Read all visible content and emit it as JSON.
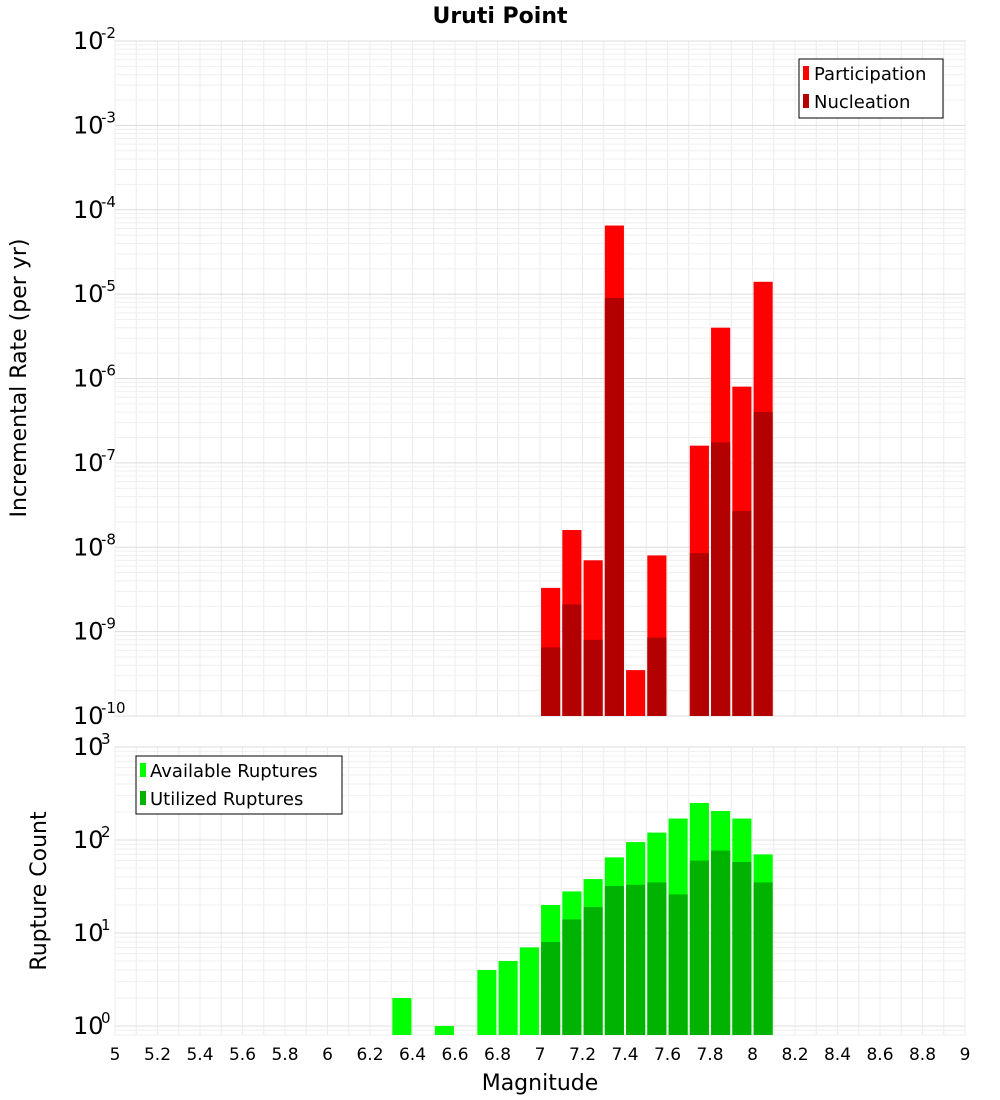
{
  "chart_data": [
    {
      "type": "bar",
      "title": "Uruti Point",
      "xlabel": "",
      "ylabel": "Incremental Rate (per yr)",
      "yscale": "log",
      "ylim": [
        1e-10,
        0.01
      ],
      "xlim": [
        5,
        9
      ],
      "yticks": [
        {
          "base": "10",
          "exp": "-10"
        },
        {
          "base": "10",
          "exp": "-9"
        },
        {
          "base": "10",
          "exp": "-8"
        },
        {
          "base": "10",
          "exp": "-7"
        },
        {
          "base": "10",
          "exp": "-6"
        },
        {
          "base": "10",
          "exp": "-5"
        },
        {
          "base": "10",
          "exp": "-4"
        },
        {
          "base": "10",
          "exp": "-3"
        },
        {
          "base": "10",
          "exp": "-2"
        }
      ],
      "grid": true,
      "legend_position": "top-right",
      "series": [
        {
          "name": "Participation",
          "color": "#ff0000",
          "x": [
            7.05,
            7.15,
            7.25,
            7.35,
            7.45,
            7.55,
            7.75,
            7.85,
            7.95,
            8.05
          ],
          "values": [
            3.3e-09,
            1.6e-08,
            7e-09,
            6.5e-05,
            3.5e-10,
            8e-09,
            1.6e-07,
            4e-06,
            8e-07,
            1.4e-05
          ]
        },
        {
          "name": "Nucleation",
          "color": "#b30000",
          "x": [
            7.05,
            7.15,
            7.25,
            7.35,
            7.55,
            7.75,
            7.85,
            7.95,
            8.05
          ],
          "values": [
            6.5e-10,
            2.1e-09,
            8e-10,
            9e-06,
            8.5e-10,
            8.5e-09,
            1.75e-07,
            2.7e-08,
            4e-07
          ]
        }
      ]
    },
    {
      "type": "bar",
      "title": "",
      "xlabel": "Magnitude",
      "ylabel": "Rupture Count",
      "yscale": "log",
      "ylim": [
        0.8,
        1000
      ],
      "xlim": [
        5,
        9
      ],
      "yticks": [
        {
          "base": "10",
          "exp": "0"
        },
        {
          "base": "10",
          "exp": "1"
        },
        {
          "base": "10",
          "exp": "2"
        },
        {
          "base": "10",
          "exp": "3"
        }
      ],
      "xticks": [
        "5",
        "5.2",
        "5.4",
        "5.6",
        "5.8",
        "6",
        "6.2",
        "6.4",
        "6.6",
        "6.8",
        "7",
        "7.2",
        "7.4",
        "7.6",
        "7.8",
        "8",
        "8.2",
        "8.4",
        "8.6",
        "8.8",
        "9"
      ],
      "grid": true,
      "legend_position": "top-left",
      "series": [
        {
          "name": "Available Ruptures",
          "color": "#00ff00",
          "x": [
            6.35,
            6.55,
            6.75,
            6.85,
            6.95,
            7.05,
            7.15,
            7.25,
            7.35,
            7.45,
            7.55,
            7.65,
            7.75,
            7.85,
            7.95,
            8.05
          ],
          "values": [
            2,
            1,
            4,
            5,
            7,
            20,
            28,
            38,
            65,
            95,
            120,
            170,
            250,
            205,
            170,
            70
          ]
        },
        {
          "name": "Utilized Ruptures",
          "color": "#00b300",
          "x": [
            7.05,
            7.15,
            7.25,
            7.35,
            7.45,
            7.55,
            7.65,
            7.75,
            7.85,
            7.95,
            8.05
          ],
          "values": [
            8,
            14,
            19,
            32,
            33,
            35,
            26,
            60,
            77,
            58,
            35
          ]
        }
      ]
    }
  ]
}
